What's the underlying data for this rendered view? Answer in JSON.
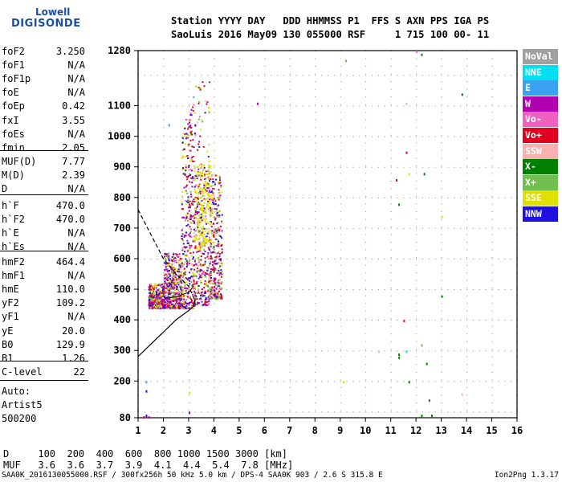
{
  "logo": {
    "line1": "Lowell",
    "line2": "DIGISONDE"
  },
  "header": {
    "line1": "Station YYYY DAY   DDD HHMMSS P1  FFS S AXN PPS IGA PS",
    "line2": "SaoLuis 2016 May09 130 055000 RSF     1 715 100 00- 11"
  },
  "params_group1": [
    {
      "k": "foF2",
      "v": "3.250"
    },
    {
      "k": "foF1",
      "v": "N/A"
    },
    {
      "k": "foF1p",
      "v": "N/A"
    },
    {
      "k": "foE",
      "v": "N/A"
    },
    {
      "k": "foEp",
      "v": "0.42"
    },
    {
      "k": "fxI",
      "v": "3.55"
    },
    {
      "k": "foEs",
      "v": "N/A"
    },
    {
      "k": "fmin",
      "v": "2.05"
    }
  ],
  "params_group2": [
    {
      "k": "MUF(D)",
      "v": "7.77"
    },
    {
      "k": "M(D)",
      "v": "2.39"
    },
    {
      "k": "D",
      "v": "N/A"
    }
  ],
  "params_group3": [
    {
      "k": "h`F",
      "v": "470.0"
    },
    {
      "k": "h`F2",
      "v": "470.0"
    },
    {
      "k": "h`E",
      "v": "N/A"
    },
    {
      "k": "h`Es",
      "v": "N/A"
    }
  ],
  "params_group4": [
    {
      "k": "hmF2",
      "v": "464.4"
    },
    {
      "k": "hmF1",
      "v": "N/A"
    },
    {
      "k": "hmE",
      "v": "110.0"
    },
    {
      "k": "yF2",
      "v": "109.2"
    },
    {
      "k": "yF1",
      "v": "N/A"
    },
    {
      "k": "yE",
      "v": "20.0"
    },
    {
      "k": "B0",
      "v": "129.9"
    },
    {
      "k": "B1",
      "v": "1.26"
    }
  ],
  "params_group5": [
    {
      "k": "C-level",
      "v": "22"
    }
  ],
  "autoscale": {
    "l1": "Auto:",
    "l2": "Artist5",
    "l3": "500200"
  },
  "legend": [
    {
      "label": "NoVal",
      "bg": "#a0a0a0",
      "fg": "#ffffff"
    },
    {
      "label": "NNE",
      "bg": "#00e0f0",
      "fg": "#ffffff"
    },
    {
      "label": "E",
      "bg": "#3aa0f0",
      "fg": "#ffffff"
    },
    {
      "label": "W",
      "bg": "#b000b0",
      "fg": "#ffffff"
    },
    {
      "label": "Vo-",
      "bg": "#f060c0",
      "fg": "#ffffff"
    },
    {
      "label": "Vo+",
      "bg": "#e00020",
      "fg": "#ffffff"
    },
    {
      "label": "SSW",
      "bg": "#f8b0b0",
      "fg": "#ffffff"
    },
    {
      "label": "X-",
      "bg": "#008000",
      "fg": "#ffffff"
    },
    {
      "label": "X+",
      "bg": "#70c050",
      "fg": "#ffffff"
    },
    {
      "label": "SSE",
      "bg": "#e0e000",
      "fg": "#ffffff"
    },
    {
      "label": "NNW",
      "bg": "#2010e0",
      "fg": "#ffffff"
    }
  ],
  "bottom": {
    "d_row": "D     100  200  400  600  800 1000 1500 3000 [km]",
    "muf_row": "MUF   3.6  3.6  3.7  3.9  4.1  4.4  5.4  7.8 [MHz]",
    "footer_left": "SAA0K_2016130055000.RSF / 300fx256h 50 kHz 5.0 km / DPS-4 SAA0K 903 / 2.6 S 315.8 E",
    "footer_right": "Ion2Png 1.3.17"
  },
  "chart_data": {
    "type": "scatter",
    "xlim": [
      1,
      16
    ],
    "ylim": [
      80,
      1280
    ],
    "x_ticks": [
      "1",
      "2",
      "3",
      "4",
      "5",
      "6",
      "7",
      "8",
      "9",
      "10",
      "11",
      "12",
      "13",
      "14",
      "15",
      "16"
    ],
    "y_ticks": [
      "80",
      "200",
      "300",
      "400",
      "500",
      "600",
      "700",
      "800",
      "900",
      "1000",
      "1100",
      "1280"
    ],
    "profile_solid": [
      [
        1.0,
        280
      ],
      [
        1.5,
        320
      ],
      [
        2.0,
        360
      ],
      [
        2.5,
        400
      ],
      [
        3.0,
        430
      ],
      [
        3.2,
        445
      ],
      [
        3.25,
        464
      ]
    ],
    "profile_dashed": [
      [
        1.0,
        760
      ],
      [
        1.5,
        680
      ],
      [
        2.0,
        600
      ],
      [
        2.5,
        550
      ],
      [
        3.0,
        510
      ],
      [
        3.25,
        464
      ]
    ],
    "trace_solid": [
      [
        2.05,
        470
      ],
      [
        2.5,
        475
      ],
      [
        3.0,
        490
      ],
      [
        3.2,
        510
      ]
    ],
    "outliers": [
      {
        "x": 5.7,
        "y": 1110,
        "c": "W"
      },
      {
        "x": 9.2,
        "y": 1250,
        "c": "X+"
      },
      {
        "x": 11.2,
        "y": 860,
        "c": "Vo+"
      },
      {
        "x": 11.6,
        "y": 950,
        "c": "Vo+"
      },
      {
        "x": 11.6,
        "y": 1110,
        "c": "SSW"
      },
      {
        "x": 11.7,
        "y": 880,
        "c": "SSE"
      },
      {
        "x": 12.0,
        "y": 1280,
        "c": "Vo-"
      },
      {
        "x": 12.3,
        "y": 880,
        "c": "X-"
      },
      {
        "x": 12.2,
        "y": 1270,
        "c": "X-"
      },
      {
        "x": 13.0,
        "y": 740,
        "c": "SSE"
      },
      {
        "x": 13.8,
        "y": 1140,
        "c": "X-"
      },
      {
        "x": 11.3,
        "y": 780,
        "c": "X-"
      },
      {
        "x": 13.0,
        "y": 480,
        "c": "X-"
      },
      {
        "x": 11.5,
        "y": 400,
        "c": "Vo+"
      },
      {
        "x": 10.5,
        "y": 300,
        "c": "SSW"
      },
      {
        "x": 11.3,
        "y": 290,
        "c": "X-"
      },
      {
        "x": 11.3,
        "y": 280,
        "c": "X-"
      },
      {
        "x": 11.6,
        "y": 300,
        "c": "NNE"
      },
      {
        "x": 11.7,
        "y": 200,
        "c": "X-"
      },
      {
        "x": 12.2,
        "y": 320,
        "c": "X+"
      },
      {
        "x": 12.4,
        "y": 260,
        "c": "X-"
      },
      {
        "x": 12.5,
        "y": 140,
        "c": "X-"
      },
      {
        "x": 12.2,
        "y": 90,
        "c": "X-"
      },
      {
        "x": 12.6,
        "y": 90,
        "c": "X-"
      },
      {
        "x": 13.8,
        "y": 160,
        "c": "SSW"
      },
      {
        "x": 9.1,
        "y": 200,
        "c": "SSE"
      },
      {
        "x": 1.3,
        "y": 170,
        "c": "NNW"
      },
      {
        "x": 1.2,
        "y": 85,
        "c": "Vo+"
      },
      {
        "x": 1.4,
        "y": 85,
        "c": "W"
      },
      {
        "x": 1.3,
        "y": 90,
        "c": "NNW"
      },
      {
        "x": 3.0,
        "y": 165,
        "c": "SSE"
      },
      {
        "x": 3.0,
        "y": 100,
        "c": "X-"
      },
      {
        "x": 1.3,
        "y": 200,
        "c": "E"
      },
      {
        "x": 2.2,
        "y": 1040,
        "c": "E"
      },
      {
        "x": 3.0,
        "y": 100,
        "c": "W"
      }
    ]
  }
}
